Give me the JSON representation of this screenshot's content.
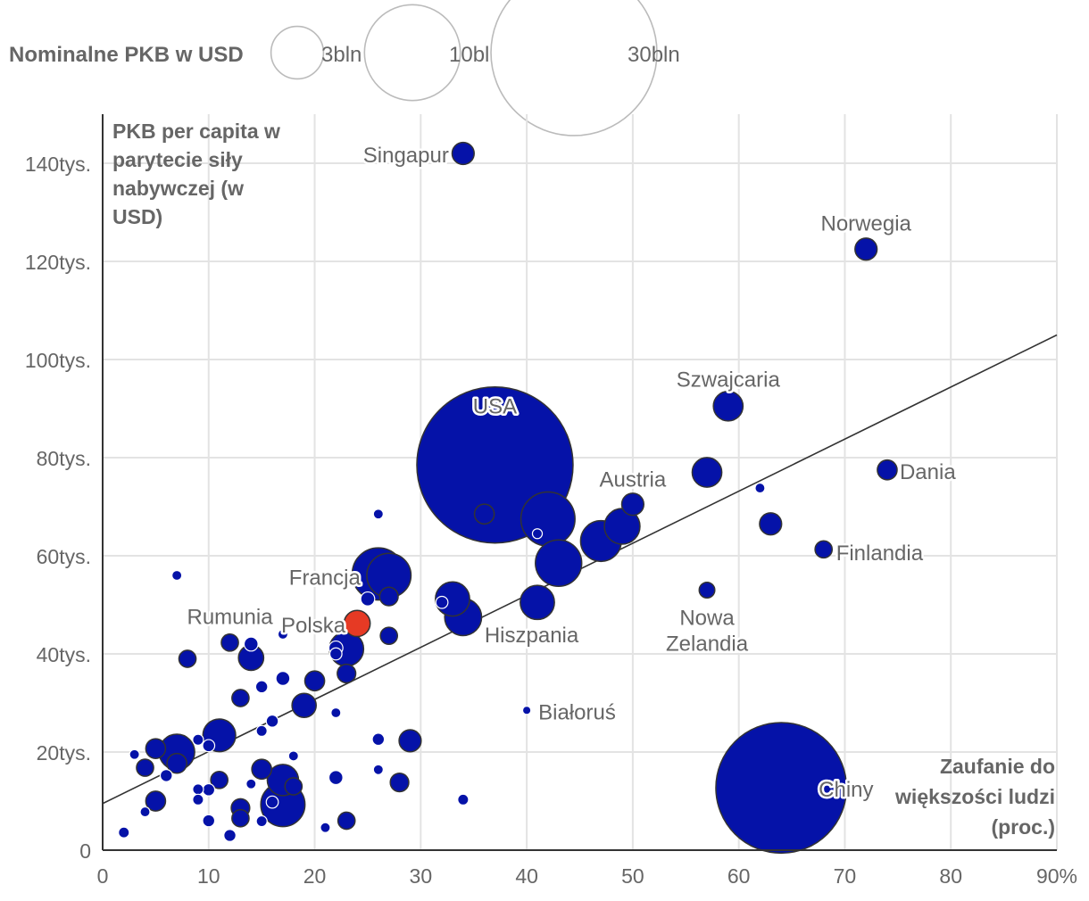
{
  "chart_data": {
    "type": "scatter",
    "xlabel": "Zaufanie do większości ludzi (proc.)",
    "ylabel": "PKB per capita w parytecie siły nabywczej (w USD)",
    "xlim": [
      0,
      90
    ],
    "ylim": [
      0,
      150000
    ],
    "x_ticks": [
      0,
      10,
      20,
      30,
      40,
      50,
      60,
      70,
      80,
      90
    ],
    "x_tick_labels": [
      "0",
      "10",
      "20",
      "30",
      "40",
      "50",
      "60",
      "70",
      "80",
      "90%"
    ],
    "y_ticks": [
      0,
      20000,
      40000,
      60000,
      80000,
      100000,
      120000,
      140000
    ],
    "y_tick_labels": [
      "0",
      "20tys.",
      "40tys.",
      "60tys.",
      "80tys.",
      "100tys.",
      "120tys.",
      "140tys."
    ],
    "y_label_lines": [
      "PKB per capita w",
      "parytecie siły",
      "nabywczej (w",
      "USD)"
    ],
    "x_label_lines": [
      "Zaufanie do",
      "większości ludzi",
      "(proc.)"
    ],
    "size_legend": {
      "title": "Nominalne PKB w USD",
      "entries": [
        {
          "label": "3bln",
          "gdp": 3
        },
        {
          "label": "10bln",
          "gdp": 10
        },
        {
          "label": "30bln",
          "gdp": 30
        }
      ]
    },
    "trendline": {
      "x0": 0,
      "y0": 9500,
      "x1": 90,
      "y1": 105000
    },
    "colors": {
      "bubble": "#0512a8",
      "highlight": "#e63a24",
      "trend": "#333333"
    },
    "labeled_points": [
      {
        "name": "Singapur",
        "x": 34,
        "y": 142000,
        "gdp": 0.5
      },
      {
        "name": "Norwegia",
        "x": 72,
        "y": 122500,
        "gdp": 0.5
      },
      {
        "name": "Szwajcaria",
        "x": 59,
        "y": 90500,
        "gdp": 0.9
      },
      {
        "name": "USA",
        "x": 37,
        "y": 78500,
        "gdp": 25
      },
      {
        "name": "Austria",
        "x": 50,
        "y": 70500,
        "gdp": 0.5
      },
      {
        "name": "Dania",
        "x": 74,
        "y": 77500,
        "gdp": 0.4
      },
      {
        "name": "Finlandia",
        "x": 68,
        "y": 61300,
        "gdp": 0.3
      },
      {
        "name": "Francja",
        "x": 26,
        "y": 56300,
        "gdp": 2.8
      },
      {
        "name": "Rumunia",
        "x": 12,
        "y": 42300,
        "gdp": 0.3
      },
      {
        "name": "Polska",
        "x": 24,
        "y": 46200,
        "gdp": 0.7
      },
      {
        "name": "Hiszpania",
        "x": 34,
        "y": 47500,
        "gdp": 1.4
      },
      {
        "name": "Nowa Zelandia",
        "x": 57,
        "y": 53000,
        "gdp": 0.25
      },
      {
        "name": "Białoruś",
        "x": 40,
        "y": 28500,
        "gdp": 0.07
      },
      {
        "name": "Chiny",
        "x": 64,
        "y": 12700,
        "gdp": 17.5
      }
    ],
    "points": [
      {
        "x": 57,
        "y": 77000,
        "gdp": 0.9
      },
      {
        "x": 62,
        "y": 73800,
        "gdp": 0.1
      },
      {
        "x": 42,
        "y": 67500,
        "gdp": 3.0
      },
      {
        "x": 36,
        "y": 68500,
        "gdp": 0.4
      },
      {
        "x": 26,
        "y": 68500,
        "gdp": 0.1
      },
      {
        "x": 49,
        "y": 66000,
        "gdp": 1.3
      },
      {
        "x": 47,
        "y": 63000,
        "gdp": 1.7
      },
      {
        "x": 63,
        "y": 66500,
        "gdp": 0.5
      },
      {
        "x": 41,
        "y": 64500,
        "gdp": 0.1
      },
      {
        "x": 43,
        "y": 58500,
        "gdp": 2.2
      },
      {
        "x": 27,
        "y": 56000,
        "gdp": 2.0
      },
      {
        "x": 7,
        "y": 56000,
        "gdp": 0.1
      },
      {
        "x": 27,
        "y": 51700,
        "gdp": 0.35
      },
      {
        "x": 25,
        "y": 51200,
        "gdp": 0.2
      },
      {
        "x": 33,
        "y": 51200,
        "gdp": 1.2
      },
      {
        "x": 32,
        "y": 50500,
        "gdp": 0.15
      },
      {
        "x": 41,
        "y": 50500,
        "gdp": 1.2
      },
      {
        "x": 27,
        "y": 43700,
        "gdp": 0.3
      },
      {
        "x": 17,
        "y": 44000,
        "gdp": 0.1
      },
      {
        "x": 23,
        "y": 41000,
        "gdp": 1.2
      },
      {
        "x": 22,
        "y": 41200,
        "gdp": 0.2
      },
      {
        "x": 14,
        "y": 42000,
        "gdp": 0.2
      },
      {
        "x": 22,
        "y": 40000,
        "gdp": 0.15
      },
      {
        "x": 14,
        "y": 39200,
        "gdp": 0.65
      },
      {
        "x": 8,
        "y": 39000,
        "gdp": 0.3
      },
      {
        "x": 23,
        "y": 36000,
        "gdp": 0.35
      },
      {
        "x": 17,
        "y": 35000,
        "gdp": 0.2
      },
      {
        "x": 20,
        "y": 34500,
        "gdp": 0.4
      },
      {
        "x": 15,
        "y": 33300,
        "gdp": 0.15
      },
      {
        "x": 13,
        "y": 31000,
        "gdp": 0.3
      },
      {
        "x": 19,
        "y": 29500,
        "gdp": 0.6
      },
      {
        "x": 22,
        "y": 28000,
        "gdp": 0.1
      },
      {
        "x": 16,
        "y": 26300,
        "gdp": 0.15
      },
      {
        "x": 15,
        "y": 24300,
        "gdp": 0.12
      },
      {
        "x": 11,
        "y": 23400,
        "gdp": 1.1
      },
      {
        "x": 9,
        "y": 22500,
        "gdp": 0.12
      },
      {
        "x": 26,
        "y": 22600,
        "gdp": 0.15
      },
      {
        "x": 29,
        "y": 22300,
        "gdp": 0.5
      },
      {
        "x": 10,
        "y": 21300,
        "gdp": 0.15
      },
      {
        "x": 5,
        "y": 20700,
        "gdp": 0.4
      },
      {
        "x": 7,
        "y": 20000,
        "gdp": 1.3
      },
      {
        "x": 3,
        "y": 19500,
        "gdp": 0.1
      },
      {
        "x": 18,
        "y": 19200,
        "gdp": 0.1
      },
      {
        "x": 7,
        "y": 17700,
        "gdp": 0.4
      },
      {
        "x": 4,
        "y": 16800,
        "gdp": 0.3
      },
      {
        "x": 15,
        "y": 16500,
        "gdp": 0.4
      },
      {
        "x": 26,
        "y": 16400,
        "gdp": 0.1
      },
      {
        "x": 6,
        "y": 15200,
        "gdp": 0.15
      },
      {
        "x": 22,
        "y": 14800,
        "gdp": 0.2
      },
      {
        "x": 17,
        "y": 14300,
        "gdp": 1.0
      },
      {
        "x": 11,
        "y": 14300,
        "gdp": 0.3
      },
      {
        "x": 28,
        "y": 13800,
        "gdp": 0.35
      },
      {
        "x": 14,
        "y": 13500,
        "gdp": 0.1
      },
      {
        "x": 18,
        "y": 13000,
        "gdp": 0.3
      },
      {
        "x": 9,
        "y": 12400,
        "gdp": 0.12
      },
      {
        "x": 10,
        "y": 12300,
        "gdp": 0.15
      },
      {
        "x": 34,
        "y": 10300,
        "gdp": 0.12
      },
      {
        "x": 5,
        "y": 10000,
        "gdp": 0.4
      },
      {
        "x": 9,
        "y": 10300,
        "gdp": 0.12
      },
      {
        "x": 17,
        "y": 9300,
        "gdp": 2.0
      },
      {
        "x": 16,
        "y": 9800,
        "gdp": 0.15
      },
      {
        "x": 13,
        "y": 8600,
        "gdp": 0.35
      },
      {
        "x": 4,
        "y": 7800,
        "gdp": 0.1
      },
      {
        "x": 13,
        "y": 6500,
        "gdp": 0.3
      },
      {
        "x": 23,
        "y": 6000,
        "gdp": 0.3
      },
      {
        "x": 10,
        "y": 6000,
        "gdp": 0.15
      },
      {
        "x": 15,
        "y": 5900,
        "gdp": 0.12
      },
      {
        "x": 21,
        "y": 4600,
        "gdp": 0.1
      },
      {
        "x": 2,
        "y": 3600,
        "gdp": 0.12
      },
      {
        "x": 12,
        "y": 3000,
        "gdp": 0.15
      }
    ]
  }
}
